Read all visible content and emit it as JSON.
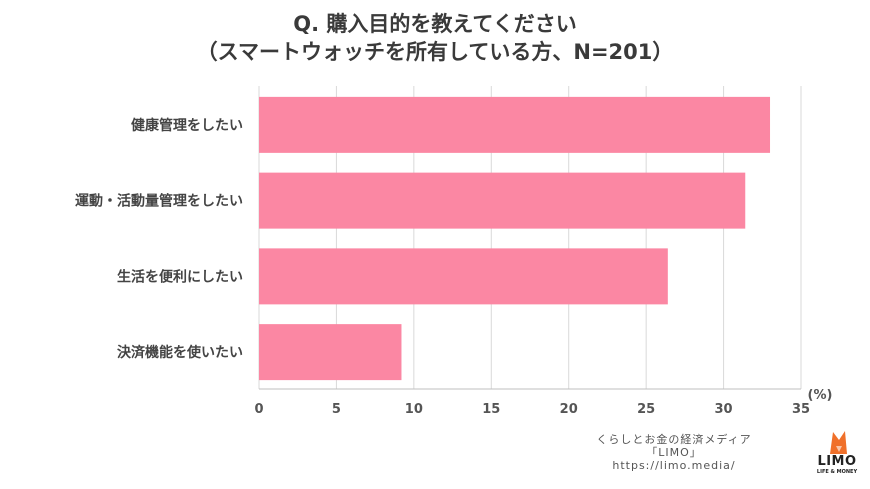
{
  "title": {
    "line1": "Q. 購入目的を教えてください",
    "line2": "（スマートウォッチを所有している方、N=201）"
  },
  "chart_data": {
    "type": "bar",
    "orientation": "horizontal",
    "categories": [
      "健康管理をしたい",
      "運動・活動量管理をしたい",
      "生活を便利にしたい",
      "決済機能を使いたい"
    ],
    "values": [
      33.0,
      31.4,
      26.4,
      9.2
    ],
    "xlim": [
      0,
      35
    ],
    "xticks": [
      "0",
      "5",
      "10",
      "15",
      "20",
      "25",
      "30",
      "35"
    ],
    "unit": "(%)",
    "bar_color": "#fb87a3",
    "grid": true
  },
  "credit": {
    "line1": "くらしとお金の経済メディア",
    "line2": "「LIMO」",
    "line3": "https://limo.media/"
  },
  "logo": {
    "text": "LIMO",
    "subtext": "LIFE & MONEY",
    "accent": "#f0702a"
  }
}
